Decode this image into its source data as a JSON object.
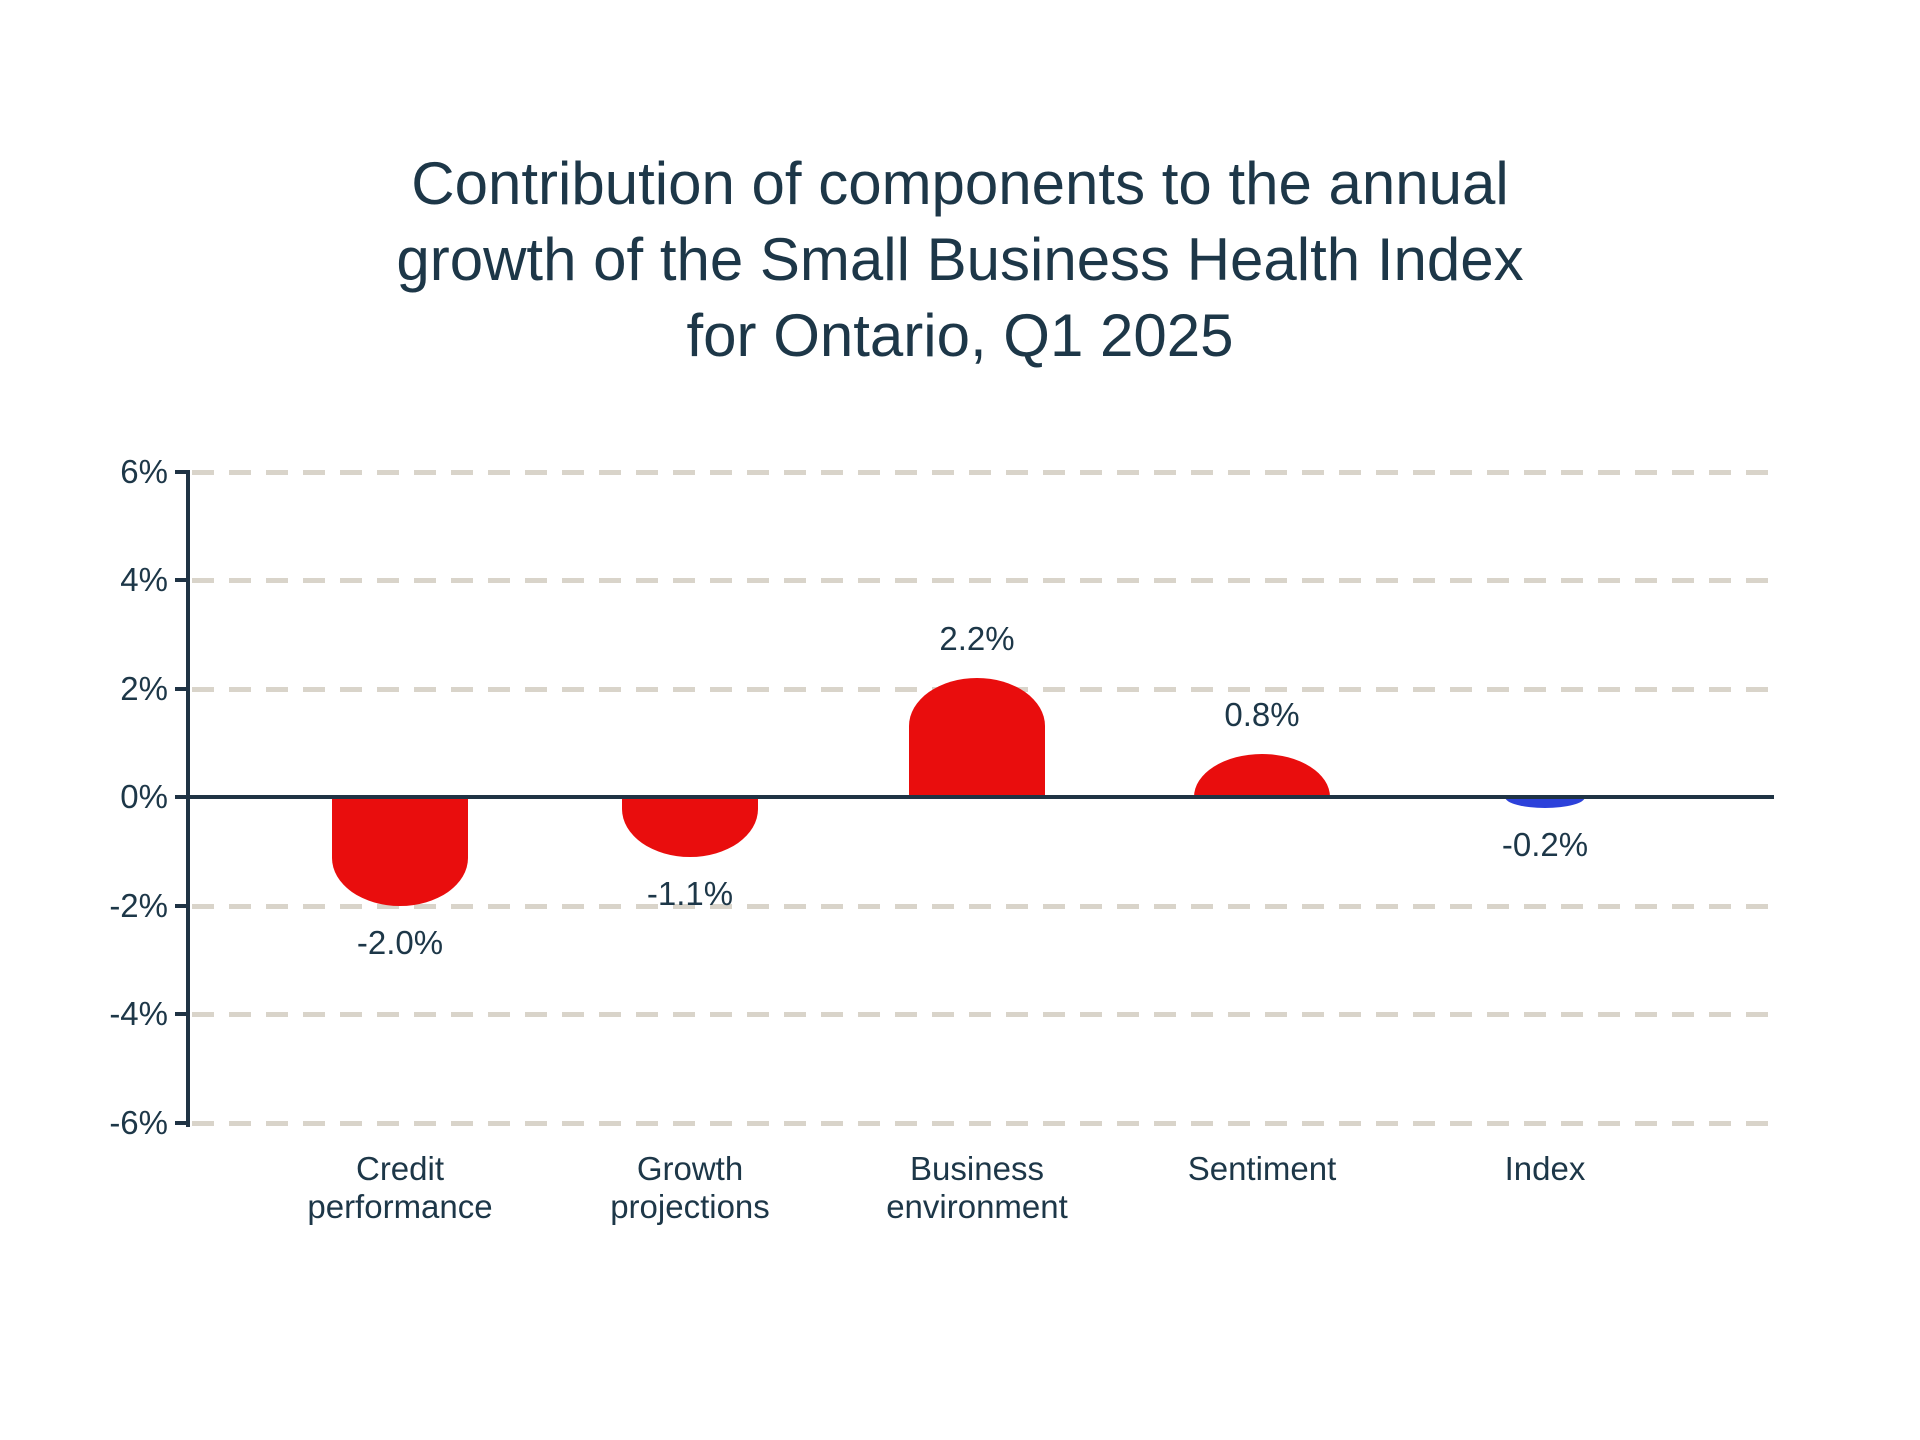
{
  "title": "Contribution of components to the annual\ngrowth of the Small Business Health Index\nfor Ontario, Q1 2025",
  "chart_data": {
    "type": "bar",
    "title": "Contribution of components to the annual growth of the Small Business Health Index for Ontario, Q1 2025",
    "categories": [
      "Credit performance",
      "Growth projections",
      "Business environment",
      "Sentiment",
      "Index"
    ],
    "category_label_lines": [
      "Credit\nperformance",
      "Growth\nprojections",
      "Business\nenvironment",
      "Sentiment",
      "Index"
    ],
    "values": [
      -2.0,
      -1.1,
      2.2,
      0.8,
      -0.2
    ],
    "data_labels": [
      "-2.0%",
      "-1.1%",
      "2.2%",
      "0.8%",
      "-0.2%"
    ],
    "y_ticks": [
      "6%",
      "4%",
      "2%",
      "0%",
      "-2%",
      "-4%",
      "-6%"
    ],
    "y_tick_values": [
      6,
      4,
      2,
      0,
      -2,
      -4,
      -6
    ],
    "ylim": [
      -6,
      6
    ],
    "xlabel": "",
    "ylabel": "",
    "grid": "horizontal-dashed",
    "legend": "none",
    "bar_colors": [
      "#e90d0d",
      "#e90d0d",
      "#e90d0d",
      "#e90d0d",
      "#2c41da"
    ],
    "colors": {
      "component_bar": "#e90d0d",
      "index_bar": "#2c41da",
      "text": "#1d3748",
      "axis": "#1f3344",
      "gridline": "#d9d4ca",
      "background": "#ffffff"
    }
  }
}
